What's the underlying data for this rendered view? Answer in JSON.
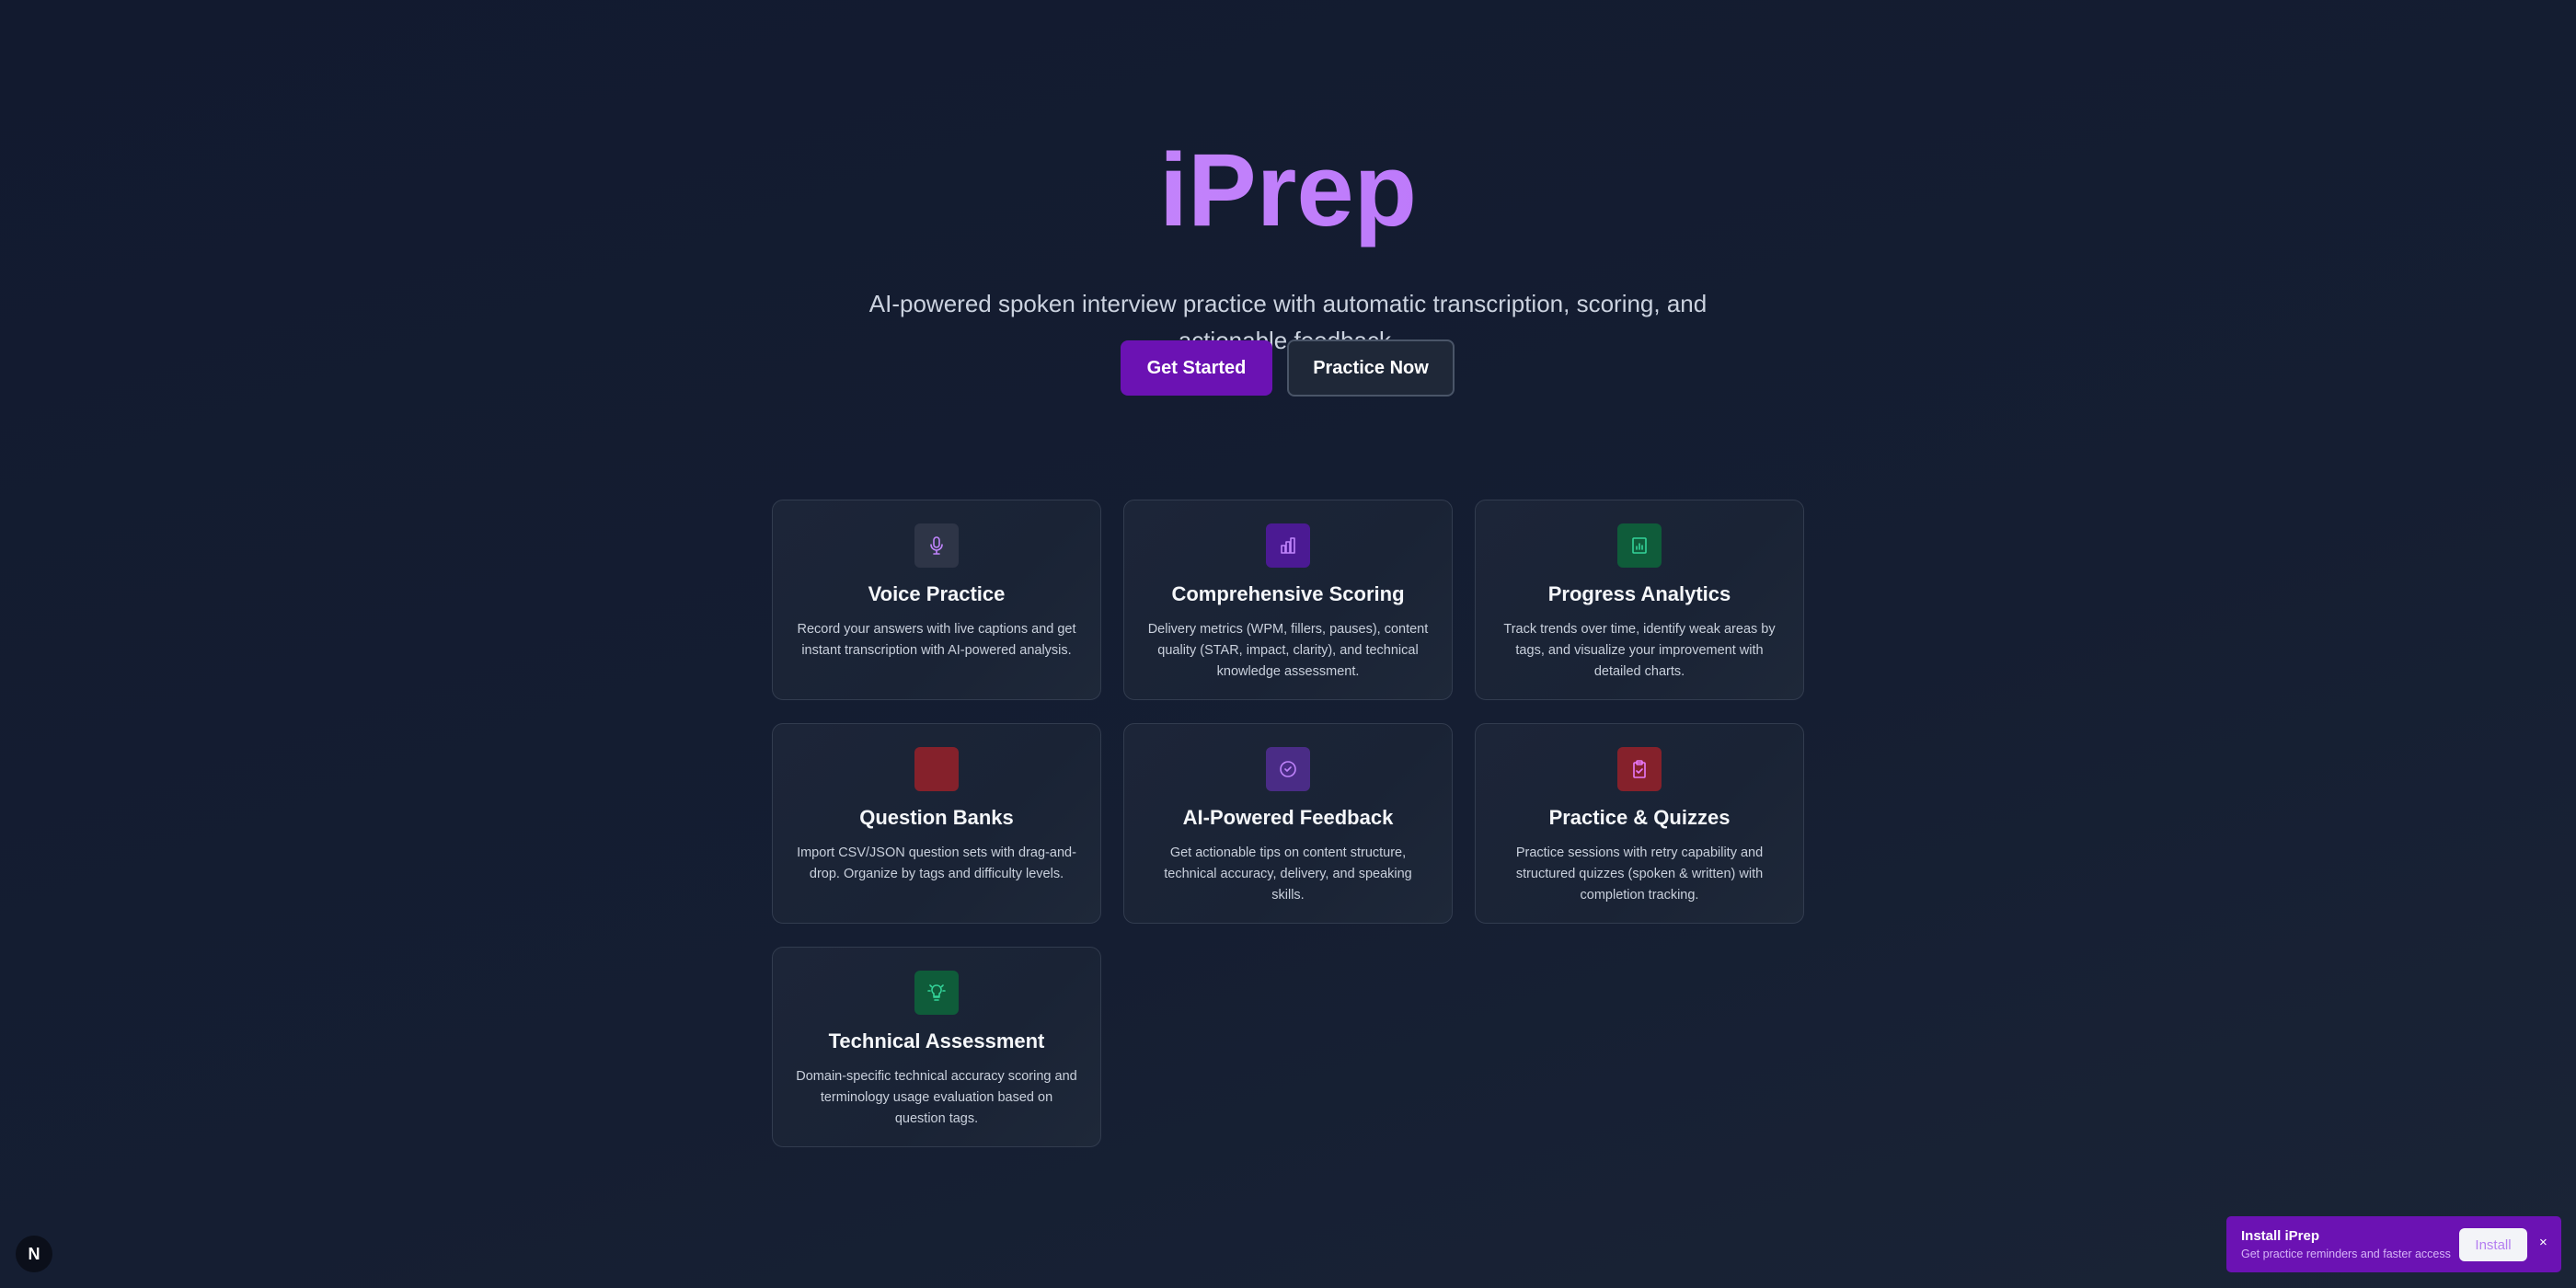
{
  "hero": {
    "title": "iPrep",
    "subtitle": "AI-powered spoken interview practice with automatic transcription, scoring, and actionable feedback.",
    "get_started": "Get Started",
    "practice_now": "Practice Now"
  },
  "features": [
    {
      "title": "Voice Practice",
      "desc": "Record your answers with live captions and get instant transcription with AI-powered analysis.",
      "icon": "microphone-icon",
      "color": "#2e3547"
    },
    {
      "title": "Comprehensive Scoring",
      "desc": "Delivery metrics (WPM, fillers, pauses), content quality (STAR, impact, clarity), and technical knowledge assessment.",
      "icon": "bar-chart-icon",
      "color": "#4b1a93"
    },
    {
      "title": "Progress Analytics",
      "desc": "Track trends over time, identify weak areas by tags, and visualize your improvement with detailed charts.",
      "icon": "chart-icon",
      "color": "#0f5c3a"
    },
    {
      "title": "Question Banks",
      "desc": "Import CSV/JSON question sets with drag-and-drop. Organize by tags and difficulty levels.",
      "icon": "blank-icon",
      "color": "#85212b"
    },
    {
      "title": "AI-Powered Feedback",
      "desc": "Get actionable tips on content structure, technical accuracy, delivery, and speaking skills.",
      "icon": "check-circle-icon",
      "color": "#4a2c86"
    },
    {
      "title": "Practice & Quizzes",
      "desc": "Practice sessions with retry capability and structured quizzes (spoken & written) with completion tracking.",
      "icon": "clipboard-check-icon",
      "color": "#85212b"
    },
    {
      "title": "Technical Assessment",
      "desc": "Domain-specific technical accuracy scoring and terminology usage evaluation based on question tags.",
      "icon": "lightbulb-icon",
      "color": "#0f5c3a"
    }
  ],
  "install_banner": {
    "title": "Install iPrep",
    "subtitle": "Get practice reminders and faster access",
    "install": "Install",
    "close": "×"
  },
  "dev_badge": "N"
}
